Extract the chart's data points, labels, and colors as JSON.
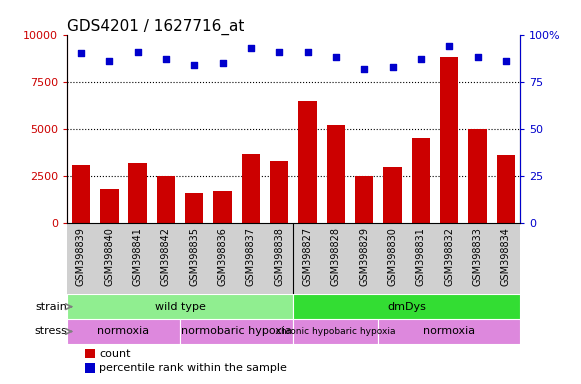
{
  "title": "GDS4201 / 1627716_at",
  "samples": [
    "GSM398839",
    "GSM398840",
    "GSM398841",
    "GSM398842",
    "GSM398835",
    "GSM398836",
    "GSM398837",
    "GSM398838",
    "GSM398827",
    "GSM398828",
    "GSM398829",
    "GSM398830",
    "GSM398831",
    "GSM398832",
    "GSM398833",
    "GSM398834"
  ],
  "counts": [
    3100,
    1800,
    3200,
    2500,
    1600,
    1700,
    3700,
    3300,
    6500,
    5200,
    2500,
    3000,
    4500,
    8800,
    5000,
    3600
  ],
  "percentile": [
    90,
    86,
    91,
    87,
    84,
    85,
    93,
    91,
    91,
    88,
    82,
    83,
    87,
    94,
    88,
    86
  ],
  "ylim_left": [
    0,
    10000
  ],
  "ylim_right": [
    0,
    100
  ],
  "yticks_left": [
    0,
    2500,
    5000,
    7500,
    10000
  ],
  "yticks_right": [
    0,
    25,
    50,
    75,
    100
  ],
  "bar_color": "#cc0000",
  "dot_color": "#0000cc",
  "strain_groups": [
    {
      "label": "wild type",
      "start": 0,
      "end": 8,
      "color": "#90ee90"
    },
    {
      "label": "dmDys",
      "start": 8,
      "end": 16,
      "color": "#33dd33"
    }
  ],
  "stress_groups": [
    {
      "label": "normoxia",
      "start": 0,
      "end": 4,
      "color": "#dd88dd"
    },
    {
      "label": "normobaric hypoxia",
      "start": 4,
      "end": 8,
      "color": "#dd88dd"
    },
    {
      "label": "chronic hypobaric hypoxia",
      "start": 8,
      "end": 11,
      "color": "#dd88dd"
    },
    {
      "label": "normoxia",
      "start": 11,
      "end": 16,
      "color": "#dd88dd"
    }
  ],
  "title_fontsize": 11,
  "tick_label_fontsize": 7,
  "bar_color_hex": "#cc0000",
  "dot_color_hex": "#0000cc",
  "axis_label_color_left": "#cc0000",
  "axis_label_color_right": "#0000cc",
  "grid_color": "black",
  "grid_linestyle": "dotted",
  "xticklabel_bg": "#d0d0d0"
}
